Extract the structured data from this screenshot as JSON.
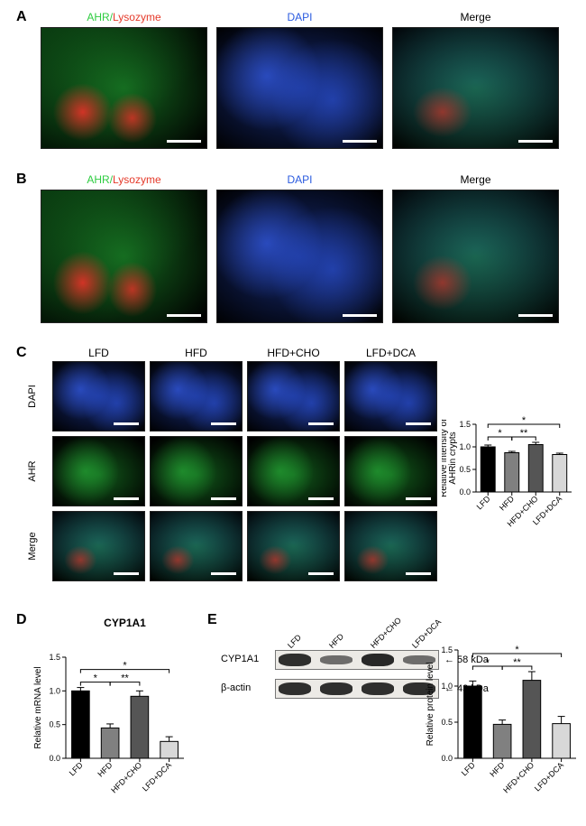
{
  "panelA": {
    "label": "A",
    "columns": [
      {
        "text": "AHR/",
        "color": "#2ecc40",
        "text2": "Lysozyme",
        "color2": "#e53a2a"
      },
      {
        "text": "DAPI",
        "color": "#2a5adf"
      },
      {
        "text": "Merge",
        "color": "#000000"
      }
    ],
    "images": [
      "ahr-lyso-low",
      "dapi-low",
      "merge-low"
    ],
    "scalebar_width": 38
  },
  "panelB": {
    "label": "B",
    "columns": [
      {
        "text": "AHR/",
        "color": "#2ecc40",
        "text2": "Lysozyme",
        "color2": "#e53a2a"
      },
      {
        "text": "DAPI",
        "color": "#2a5adf"
      },
      {
        "text": "Merge",
        "color": "#000000"
      }
    ],
    "images": [
      "ahr-lyso-high",
      "dapi-high",
      "merge-high"
    ],
    "scalebar_width": 38
  },
  "panelC": {
    "label": "C",
    "col_headers": [
      "LFD",
      "HFD",
      "HFD+CHO",
      "LFD+DCA"
    ],
    "row_labels": [
      "DAPI",
      "AHR",
      "Merge"
    ],
    "scalebar_width": 28,
    "chart": {
      "title": "",
      "y_title": "Relative intensity of\nAHRin crypts",
      "ylim": [
        0,
        1.5
      ],
      "yticks": [
        0.0,
        0.5,
        1.0,
        1.5
      ],
      "bars": [
        {
          "label": "LFD",
          "value": 1.0,
          "err": 0.04,
          "fill": "#000000"
        },
        {
          "label": "HFD",
          "value": 0.87,
          "err": 0.03,
          "fill": "#808080"
        },
        {
          "label": "HFD+CHO",
          "value": 1.05,
          "err": 0.05,
          "fill": "#555555"
        },
        {
          "label": "LFD+DCA",
          "value": 0.83,
          "err": 0.03,
          "fill": "#d8d8d8"
        }
      ],
      "sig": [
        {
          "from": 0,
          "to": 1,
          "level": 1,
          "text": "*"
        },
        {
          "from": 1,
          "to": 2,
          "level": 1,
          "text": "**"
        },
        {
          "from": 0,
          "to": 3,
          "level": 2,
          "text": "*"
        }
      ]
    }
  },
  "panelD": {
    "label": "D",
    "title": "CYP1A1",
    "y_title": "Relative mRNA level",
    "ylim": [
      0,
      1.5
    ],
    "yticks": [
      0.0,
      0.5,
      1.0,
      1.5
    ],
    "bars": [
      {
        "label": "LFD",
        "value": 1.0,
        "err": 0.05,
        "fill": "#000000"
      },
      {
        "label": "HFD",
        "value": 0.45,
        "err": 0.06,
        "fill": "#808080"
      },
      {
        "label": "HFD+CHO",
        "value": 0.92,
        "err": 0.08,
        "fill": "#555555"
      },
      {
        "label": "LFD+DCA",
        "value": 0.25,
        "err": 0.07,
        "fill": "#d8d8d8"
      }
    ],
    "sig": [
      {
        "from": 0,
        "to": 1,
        "level": 1,
        "text": "*"
      },
      {
        "from": 1,
        "to": 2,
        "level": 1,
        "text": "**"
      },
      {
        "from": 0,
        "to": 3,
        "level": 2,
        "text": "*"
      }
    ]
  },
  "panelE": {
    "label": "E",
    "lane_labels": [
      "LFD",
      "HFD",
      "HFD+CHO",
      "LFD+DCA"
    ],
    "rows": [
      {
        "name": "CYP1A1",
        "kda": "58 kDa",
        "intensities": [
          0.95,
          0.45,
          1.0,
          0.45
        ]
      },
      {
        "name": "β-actin",
        "kda": "43 kDa",
        "intensities": [
          0.95,
          0.95,
          0.95,
          0.95
        ]
      }
    ],
    "chart": {
      "y_title": "Relative protein level",
      "ylim": [
        0,
        1.5
      ],
      "yticks": [
        0.0,
        0.5,
        1.0,
        1.5
      ],
      "bars": [
        {
          "label": "LFD",
          "value": 1.0,
          "err": 0.07,
          "fill": "#000000"
        },
        {
          "label": "HFD",
          "value": 0.47,
          "err": 0.06,
          "fill": "#808080"
        },
        {
          "label": "HFD+CHO",
          "value": 1.08,
          "err": 0.12,
          "fill": "#555555"
        },
        {
          "label": "LFD+DCA",
          "value": 0.48,
          "err": 0.1,
          "fill": "#d8d8d8"
        }
      ],
      "sig": [
        {
          "from": 0,
          "to": 1,
          "level": 1,
          "text": "*"
        },
        {
          "from": 1,
          "to": 2,
          "level": 1,
          "text": "**"
        },
        {
          "from": 0,
          "to": 3,
          "level": 2,
          "text": "*"
        }
      ]
    }
  }
}
